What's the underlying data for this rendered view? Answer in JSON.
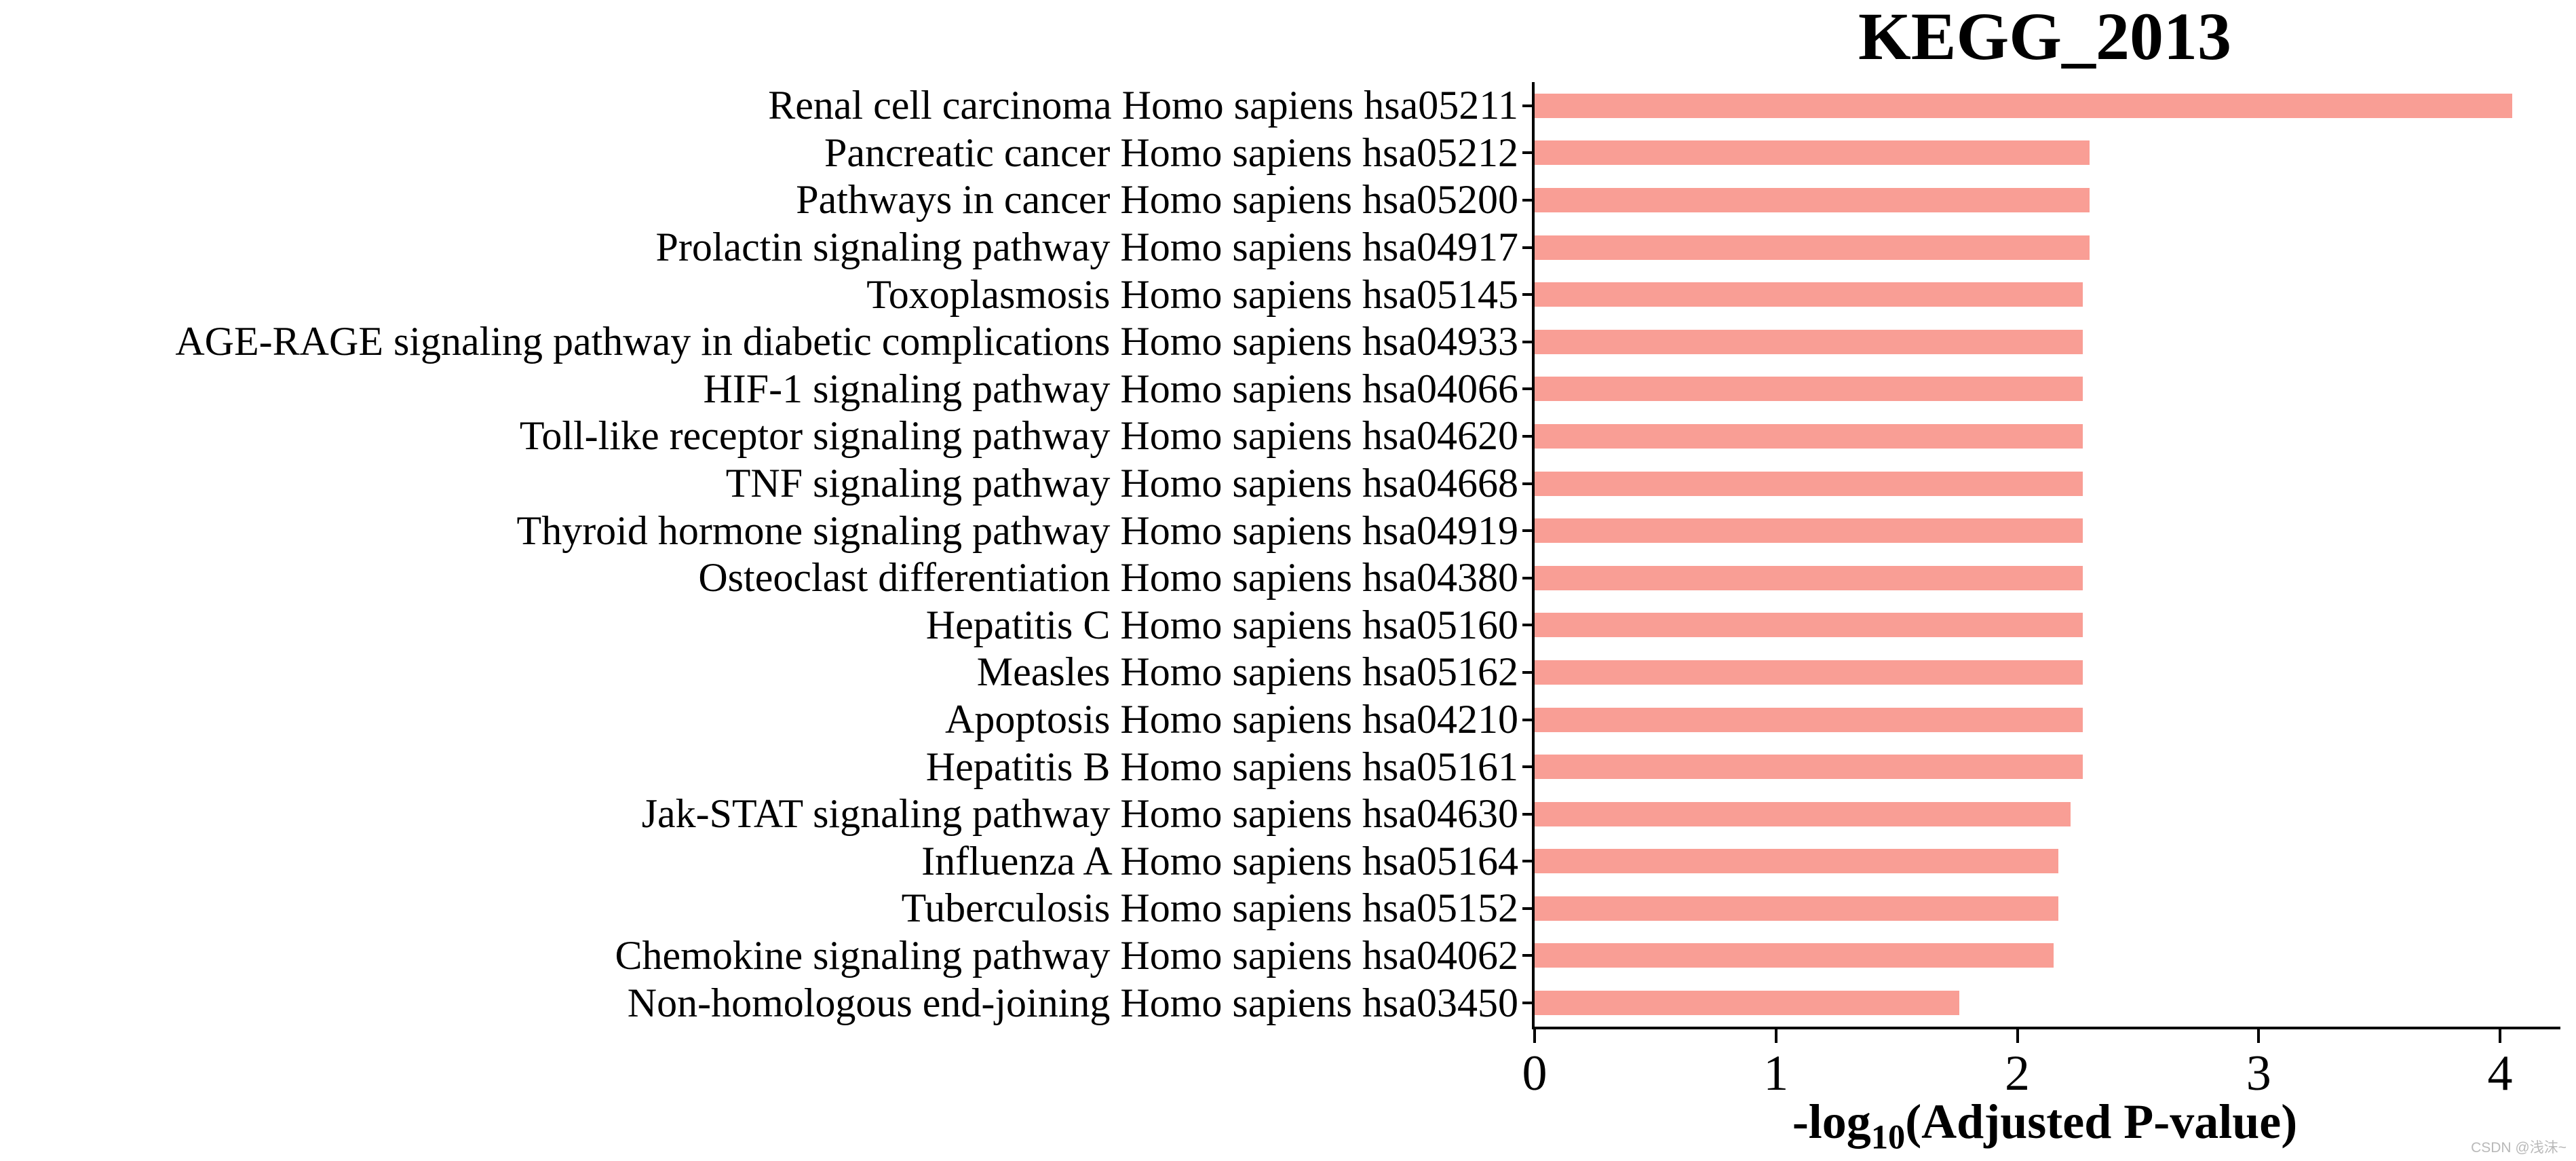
{
  "chart_data": {
    "type": "bar",
    "orientation": "horizontal",
    "title": "KEGG_2013",
    "categories": [
      "Renal cell carcinoma Homo sapiens hsa05211",
      "Pancreatic cancer Homo sapiens hsa05212",
      "Pathways in cancer Homo sapiens hsa05200",
      "Prolactin signaling pathway Homo sapiens hsa04917",
      "Toxoplasmosis Homo sapiens hsa05145",
      "AGE-RAGE signaling pathway in diabetic complications Homo sapiens hsa04933",
      "HIF-1 signaling pathway Homo sapiens hsa04066",
      "Toll-like receptor signaling pathway Homo sapiens hsa04620",
      "TNF signaling pathway Homo sapiens hsa04668",
      "Thyroid hormone signaling pathway Homo sapiens hsa04919",
      "Osteoclast differentiation Homo sapiens hsa04380",
      "Hepatitis C Homo sapiens hsa05160",
      "Measles Homo sapiens hsa05162",
      "Apoptosis Homo sapiens hsa04210",
      "Hepatitis B Homo sapiens hsa05161",
      "Jak-STAT signaling pathway Homo sapiens hsa04630",
      "Influenza A Homo sapiens hsa05164",
      "Tuberculosis Homo sapiens hsa05152",
      "Chemokine signaling pathway Homo sapiens hsa04062",
      "Non-homologous end-joining Homo sapiens hsa03450"
    ],
    "values": [
      4.05,
      2.3,
      2.3,
      2.3,
      2.27,
      2.27,
      2.27,
      2.27,
      2.27,
      2.27,
      2.27,
      2.27,
      2.27,
      2.27,
      2.27,
      2.22,
      2.17,
      2.17,
      2.15,
      1.76
    ],
    "xlabel_prefix": "-log",
    "xlabel_sub": "10",
    "xlabel_suffix": "(Adjusted P-value)",
    "xticks": [
      0,
      1,
      2,
      3,
      4
    ],
    "xlim": [
      0,
      4.25
    ],
    "bar_color": "#f99e95",
    "axis_color": "#000000",
    "grid": false,
    "legend_position": "none"
  },
  "watermark": "CSDN @浅沫~"
}
